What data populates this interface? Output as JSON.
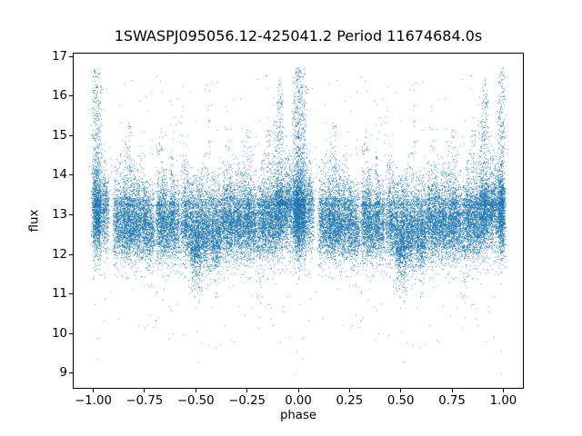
{
  "figure": {
    "background_color": "#ffffff",
    "text_color": "#000000"
  },
  "chart_data": {
    "type": "scatter",
    "title": "1SWASPJ095056.12-425041.2 Period 11674684.0s",
    "xlabel": "phase",
    "ylabel": "flux",
    "legend": "none",
    "grid": false,
    "axes": {
      "xlim": [
        -1.1,
        1.1
      ],
      "ylim": [
        8.6,
        17.1
      ],
      "x_ticks": {
        "values": [
          -1.0,
          -0.75,
          -0.5,
          -0.25,
          0.0,
          0.25,
          0.5,
          0.75,
          1.0
        ],
        "labels": [
          "−1.00",
          "−0.75",
          "−0.50",
          "−0.25",
          "0.00",
          "0.25",
          "0.50",
          "0.75",
          "1.00"
        ]
      },
      "y_ticks": {
        "values": [
          9,
          10,
          11,
          12,
          13,
          14,
          15,
          16,
          17
        ],
        "labels": [
          "9",
          "10",
          "11",
          "12",
          "13",
          "14",
          "15",
          "16",
          "17"
        ]
      }
    },
    "scatter": {
      "marker_color": "#1f77b4",
      "marker_alpha": 0.78,
      "marker_size_px": 1,
      "seed": 42,
      "fold_duplicate_offset": -1,
      "flux_band": [
        11.8,
        13.9
      ],
      "flux_extremes": [
        8.95,
        16.78
      ],
      "defaults": {
        "w": 0.006,
        "mu": 12.8,
        "sigma": 0.42,
        "upFrac": 0.16,
        "upFracLow": 0.08,
        "upBase": 13.25,
        "upPow": 2,
        "downFrac": 0.02,
        "depth": 11.35,
        "downBase": 12.2
      },
      "strips": [
        {
          "p": 0.005,
          "n": 480,
          "pk": 16.75,
          "mu": 13.05,
          "sigma": 0.5,
          "up": 0.5,
          "w": 0.008
        },
        {
          "p": 0.018,
          "n": 280,
          "pk": 16.4,
          "mu": 13.0,
          "up": 0.4
        },
        {
          "p": 0.024,
          "n": 160,
          "pk": 16.7,
          "mu": 13.0,
          "up": 0.45
        },
        {
          "p": 0.032,
          "n": 240,
          "pk": 16.25,
          "mu": 12.95,
          "up": 0.35
        },
        {
          "p": 0.05,
          "n": 210,
          "pk": 14.8,
          "mu": 13.15,
          "sigma": 0.45
        },
        {
          "p": 0.065,
          "n": 160,
          "pk": 14.2,
          "mu": 13.1
        },
        {
          "p": 0.105,
          "n": 200,
          "pk": 14.6
        },
        {
          "p": 0.118,
          "n": 170,
          "pk": 14.25
        },
        {
          "p": 0.133,
          "n": 200,
          "pk": 15.0
        },
        {
          "p": 0.148,
          "n": 280,
          "pk": 14.5
        },
        {
          "p": 0.163,
          "n": 270,
          "pk": 15.0
        },
        {
          "p": 0.178,
          "n": 310,
          "pk": 15.35,
          "up": 0.25
        },
        {
          "p": 0.195,
          "n": 260,
          "pk": 14.3
        },
        {
          "p": 0.21,
          "n": 240,
          "pk": 14.0
        },
        {
          "p": 0.225,
          "n": 280,
          "pk": 14.6
        },
        {
          "p": 0.243,
          "n": 260,
          "pk": 14.2
        },
        {
          "p": 0.258,
          "n": 240,
          "pk": 14.0
        },
        {
          "p": 0.272,
          "n": 220,
          "pk": 13.9,
          "mu": 12.65
        },
        {
          "p": 0.288,
          "n": 180,
          "pk": 13.85,
          "mu": 12.6
        },
        {
          "p": 0.315,
          "n": 260,
          "pk": 14.8
        },
        {
          "p": 0.33,
          "n": 280,
          "pk": 15.2,
          "up": 0.22
        },
        {
          "p": 0.345,
          "n": 260,
          "pk": 14.2
        },
        {
          "p": 0.36,
          "n": 240,
          "pk": 13.9,
          "mu": 12.65
        },
        {
          "p": 0.378,
          "n": 280,
          "pk": 14.6
        },
        {
          "p": 0.392,
          "n": 260,
          "pk": 14.1
        },
        {
          "p": 0.41,
          "n": 240,
          "pk": 13.9
        },
        {
          "p": 0.43,
          "n": 130,
          "pk": 15.9,
          "up": 0.18
        },
        {
          "p": 0.447,
          "n": 260,
          "pk": 14.3
        },
        {
          "p": 0.462,
          "n": 240,
          "pk": 14.5
        },
        {
          "p": 0.48,
          "n": 330,
          "pk": 13.9,
          "mu": 12.55,
          "sigma": 0.5,
          "down": 0.1,
          "depth": 11.0
        },
        {
          "p": 0.497,
          "n": 350,
          "pk": 14.0,
          "mu": 12.5,
          "sigma": 0.5,
          "down": 0.12,
          "depth": 10.8
        },
        {
          "p": 0.513,
          "n": 340,
          "pk": 13.9,
          "mu": 12.5,
          "sigma": 0.5,
          "down": 0.12,
          "depth": 10.6
        },
        {
          "p": 0.53,
          "n": 320,
          "pk": 14.2,
          "mu": 12.6,
          "down": 0.08,
          "depth": 11.0
        },
        {
          "p": 0.548,
          "n": 300,
          "pk": 14.6,
          "mu": 12.6,
          "down": 0.06,
          "depth": 11.2
        },
        {
          "p": 0.565,
          "n": 210,
          "pk": 16.45,
          "mu": 12.7,
          "up": 0.2,
          "down": 0.05,
          "depth": 10.9
        },
        {
          "p": 0.582,
          "n": 300,
          "pk": 14.2,
          "mu": 12.6,
          "down": 0.06
        },
        {
          "p": 0.6,
          "n": 320,
          "pk": 14.0,
          "mu": 12.55,
          "down": 0.08,
          "depth": 10.9
        },
        {
          "p": 0.615,
          "n": 280,
          "pk": 13.9,
          "mu": 12.6
        },
        {
          "p": 0.635,
          "n": 280,
          "pk": 14.4
        },
        {
          "p": 0.652,
          "n": 300,
          "pk": 14.9
        },
        {
          "p": 0.668,
          "n": 280,
          "pk": 14.3
        },
        {
          "p": 0.685,
          "n": 260,
          "pk": 14.0
        },
        {
          "p": 0.702,
          "n": 280,
          "pk": 14.5
        },
        {
          "p": 0.718,
          "n": 260,
          "pk": 14.2
        },
        {
          "p": 0.735,
          "n": 280,
          "pk": 14.8
        },
        {
          "p": 0.752,
          "n": 300,
          "pk": 15.4,
          "up": 0.22
        },
        {
          "p": 0.768,
          "n": 260,
          "pk": 14.6
        },
        {
          "p": 0.785,
          "n": 240,
          "pk": 14.3
        },
        {
          "p": 0.805,
          "n": 220,
          "pk": 14.0,
          "down": 0.15,
          "depth": 10.3
        },
        {
          "p": 0.822,
          "n": 260,
          "pk": 14.5
        },
        {
          "p": 0.838,
          "n": 280,
          "pk": 14.9
        },
        {
          "p": 0.855,
          "n": 300,
          "pk": 15.2,
          "up": 0.22
        },
        {
          "p": 0.872,
          "n": 280,
          "pk": 14.6
        },
        {
          "p": 0.888,
          "n": 300,
          "pk": 15.6,
          "mu": 12.9,
          "up": 0.3
        },
        {
          "p": 0.902,
          "n": 360,
          "pk": 16.5,
          "mu": 13.0,
          "up": 0.42,
          "w": 0.007
        },
        {
          "p": 0.916,
          "n": 300,
          "pk": 16.3,
          "mu": 13.0,
          "up": 0.38
        },
        {
          "p": 0.932,
          "n": 270,
          "pk": 15.0,
          "mu": 13.05
        },
        {
          "p": 0.947,
          "n": 240,
          "pk": 14.6,
          "mu": 13.1
        },
        {
          "p": 0.962,
          "n": 200,
          "pk": 14.7,
          "mu": 13.1
        },
        {
          "p": 0.978,
          "n": 270,
          "pk": 16.2,
          "mu": 13.0,
          "up": 0.35
        },
        {
          "p": 0.988,
          "n": 400,
          "pk": 16.75,
          "mu": 13.05,
          "sigma": 0.5,
          "up": 0.48,
          "w": 0.007
        },
        {
          "p": 0.998,
          "n": 280,
          "pk": 16.6,
          "mu": 13.0,
          "up": 0.45
        }
      ],
      "outliers": [
        [
          0.988,
          9.0
        ],
        [
          0.99,
          9.55
        ],
        [
          0.02,
          9.35
        ],
        [
          0.685,
          9.8
        ],
        [
          0.513,
          9.3
        ],
        [
          0.56,
          9.7
        ],
        [
          0.805,
          10.15
        ],
        [
          0.305,
          10.35
        ],
        [
          0.44,
          9.95
        ],
        [
          0.12,
          10.4
        ],
        [
          0.252,
          10.15
        ],
        [
          0.74,
          10.45
        ],
        [
          0.875,
          10.2
        ],
        [
          0.955,
          9.9
        ],
        [
          0.38,
          10.6
        ],
        [
          0.64,
          10.2
        ]
      ],
      "background": {
        "n": 380,
        "top": 16.6,
        "bottom": 9.6
      }
    }
  }
}
